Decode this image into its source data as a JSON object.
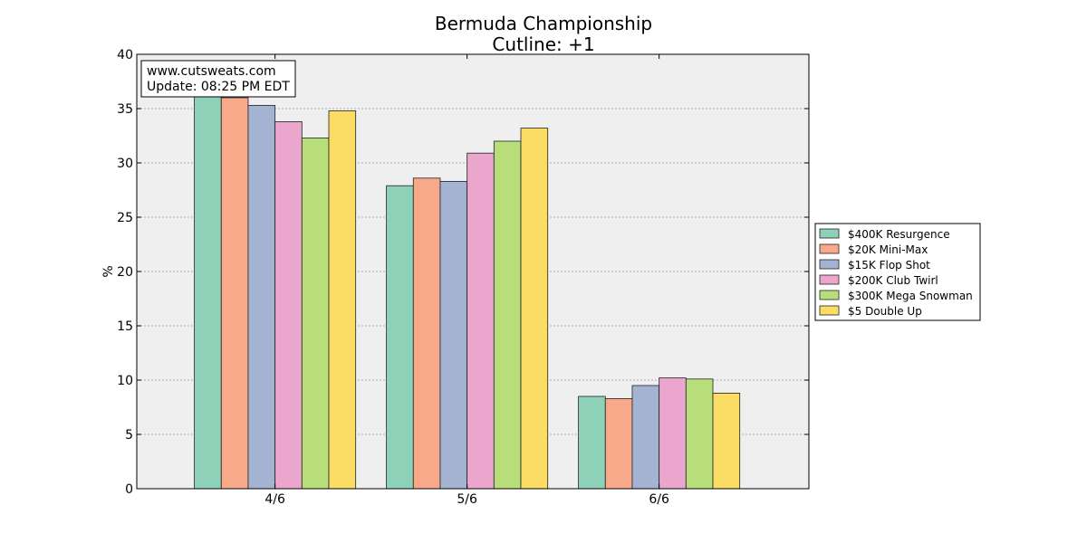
{
  "chart_data": {
    "type": "bar",
    "title": "Bermuda Championship",
    "subtitle": "Cutline: +1",
    "xlabel": "",
    "ylabel": "%",
    "ylim": [
      0,
      40
    ],
    "yticks": [
      0,
      5,
      10,
      15,
      20,
      25,
      30,
      35,
      40
    ],
    "grid": true,
    "legend_position": "right",
    "categories": [
      "4/6",
      "5/6",
      "6/6"
    ],
    "series": [
      {
        "name": "$400K Resurgence",
        "color": "#8dd1b8",
        "values": [
          36.1,
          27.9,
          8.5
        ]
      },
      {
        "name": "$20K Mini-Max",
        "color": "#f8a98a",
        "values": [
          36.0,
          28.6,
          8.3
        ]
      },
      {
        "name": "$15K Flop Shot",
        "color": "#a5b3d3",
        "values": [
          35.3,
          28.3,
          9.5
        ]
      },
      {
        "name": "$200K Club Twirl",
        "color": "#eaa6cd",
        "values": [
          33.8,
          30.9,
          10.2
        ]
      },
      {
        "name": "$300K Mega Snowman",
        "color": "#b8de7c",
        "values": [
          32.3,
          32.0,
          10.1
        ]
      },
      {
        "name": "$5 Double Up",
        "color": "#fbdd66",
        "values": [
          34.8,
          33.2,
          8.8
        ]
      }
    ],
    "annotation": [
      "www.cutsweats.com",
      "Update: 08:25 PM EDT"
    ]
  }
}
